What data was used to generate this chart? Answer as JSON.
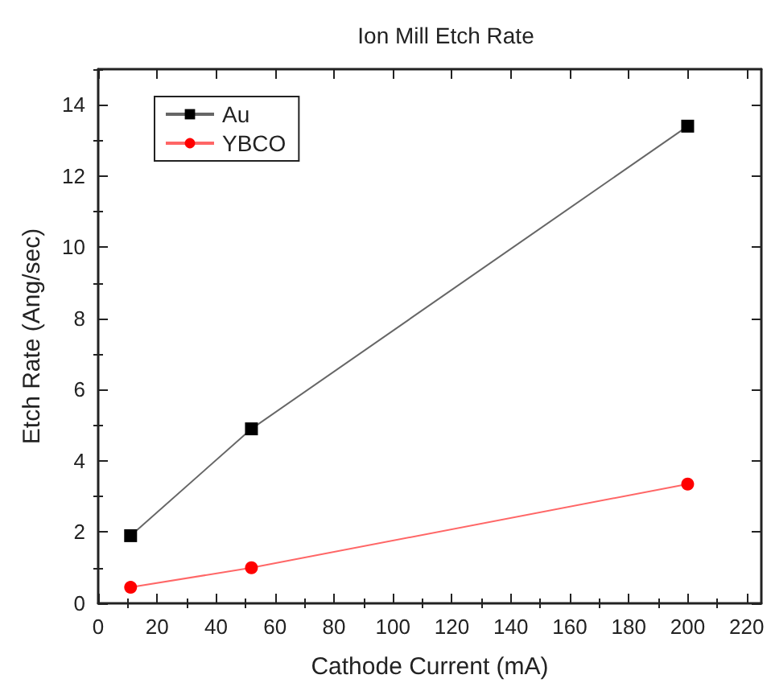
{
  "chart_data": {
    "type": "line",
    "title": "Ion Mill Etch Rate",
    "xlabel": "Cathode Current (mA)",
    "ylabel": "Etch Rate (Ang/sec)",
    "x": [
      11,
      52,
      200
    ],
    "series": [
      {
        "name": "Au",
        "color": "#000000",
        "marker": "square",
        "values": [
          1.9,
          4.9,
          13.4
        ]
      },
      {
        "name": "YBCO",
        "color": "#ff0000",
        "marker": "circle",
        "values": [
          0.45,
          1.0,
          3.35
        ]
      }
    ],
    "xlim": [
      0,
      225
    ],
    "xticks": [
      0,
      20,
      40,
      60,
      80,
      100,
      120,
      140,
      160,
      180,
      200,
      220
    ],
    "ylim": [
      0,
      15
    ],
    "yticks": [
      0,
      2,
      4,
      6,
      8,
      10,
      12,
      14
    ],
    "grid": false,
    "legend": "top left",
    "line_style": "solid"
  }
}
